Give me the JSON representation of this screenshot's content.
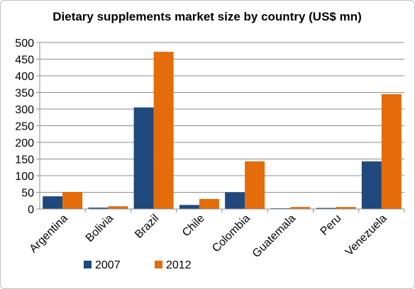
{
  "chart_data": {
    "type": "bar",
    "title": "Dietary supplements market size by country (US$ mn)",
    "categories": [
      "Argentina",
      "Bolivia",
      "Brazil",
      "Chile",
      "Colombia",
      "Guatemala",
      "Peru",
      "Venezuela"
    ],
    "series": [
      {
        "name": "2007",
        "color": "#1f497d",
        "values": [
          38,
          4,
          305,
          12,
          50,
          2,
          3,
          143
        ]
      },
      {
        "name": "2012",
        "color": "#e46c0a",
        "values": [
          51,
          8,
          472,
          30,
          143,
          6,
          6,
          345
        ]
      }
    ],
    "ylim": [
      0,
      500
    ],
    "yticks": [
      0,
      50,
      100,
      150,
      200,
      250,
      300,
      350,
      400,
      450,
      500
    ],
    "grid": true,
    "legend": "bottom"
  }
}
